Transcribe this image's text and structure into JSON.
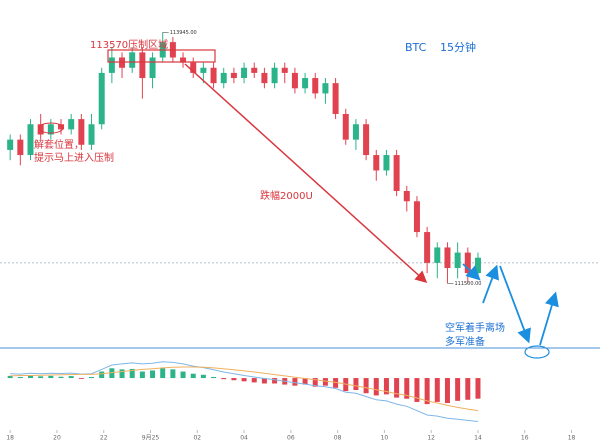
{
  "chart_data": {
    "type": "candlestick",
    "title": "BTC",
    "subtitle": "15分钟",
    "annotations": [
      "113570压制区域",
      "跌幅2000U",
      "解套位置，",
      "提示马上进入压制",
      "空军着手离场",
      "多军准备"
    ],
    "price_labels": [
      {
        "value": 113945,
        "label": "113945.00"
      },
      {
        "value": 111500,
        "label": "111500.00"
      }
    ],
    "reference_line": 111700,
    "up_color": "#2bb389",
    "down_color": "#e0434f",
    "xlim": [
      -1,
      58
    ],
    "ylim": [
      110900,
      114260
    ],
    "xticks": [
      {
        "value": 0,
        "label": "18"
      },
      {
        "value": 4.6,
        "label": "20"
      },
      {
        "value": 9.2,
        "label": "22"
      },
      {
        "value": 13.8,
        "label": "9月25"
      },
      {
        "value": 18.4,
        "label": "02"
      },
      {
        "value": 23,
        "label": "04"
      },
      {
        "value": 27.6,
        "label": "06"
      },
      {
        "value": 32.2,
        "label": "08"
      },
      {
        "value": 36.8,
        "label": "10"
      },
      {
        "value": 41.4,
        "label": "12"
      },
      {
        "value": 46,
        "label": "14"
      },
      {
        "value": 50.6,
        "label": "16"
      },
      {
        "value": 55.2,
        "label": "18"
      }
    ],
    "open": [
      112800,
      112900,
      112750,
      113050,
      112950,
      113050,
      113000,
      113100,
      112850,
      113050,
      113550,
      113700,
      113600,
      113750,
      113500,
      113700,
      113850,
      113700,
      113650,
      113550,
      113600,
      113450,
      113550,
      113500,
      113600,
      113550,
      113450,
      113600,
      113550,
      113400,
      113500,
      113350,
      113450,
      113150,
      112900,
      113050,
      112750,
      112600,
      112750,
      112400,
      112300,
      112000,
      111700,
      111850,
      111650,
      111800,
      111600
    ],
    "close": [
      112900,
      112750,
      113050,
      112950,
      113050,
      113000,
      113100,
      112850,
      113050,
      113550,
      113700,
      113600,
      113750,
      113500,
      113700,
      113850,
      113700,
      113650,
      113550,
      113600,
      113450,
      113550,
      113500,
      113600,
      113550,
      113450,
      113600,
      113550,
      113400,
      113500,
      113350,
      113450,
      113150,
      112900,
      113050,
      112750,
      112600,
      112750,
      112400,
      112300,
      112000,
      111700,
      111850,
      111650,
      111800,
      111600,
      111750
    ],
    "high": [
      112950,
      112950,
      113100,
      113150,
      113100,
      113100,
      113150,
      113150,
      113150,
      113600,
      113800,
      113750,
      113800,
      113800,
      113750,
      113945,
      113900,
      113750,
      113700,
      113650,
      113650,
      113600,
      113600,
      113650,
      113650,
      113600,
      113650,
      113650,
      113600,
      113550,
      113550,
      113500,
      113500,
      113200,
      113100,
      113100,
      112800,
      112800,
      112800,
      112450,
      112350,
      112050,
      111900,
      111900,
      111900,
      111850,
      111800
    ],
    "low": [
      112700,
      112650,
      112700,
      112900,
      112900,
      112950,
      112950,
      112800,
      112800,
      113000,
      113450,
      113500,
      113550,
      113300,
      113400,
      113650,
      113650,
      113600,
      113500,
      113450,
      113400,
      113400,
      113450,
      113450,
      113500,
      113400,
      113400,
      113450,
      113350,
      113350,
      113300,
      113250,
      113100,
      112850,
      112800,
      112700,
      112500,
      112550,
      112350,
      112200,
      111950,
      111600,
      111550,
      111500,
      111550,
      111500,
      111580
    ],
    "macd": {
      "ylim": [
        -230,
        120
      ],
      "hist": [
        10,
        5,
        12,
        8,
        10,
        6,
        9,
        -4,
        5,
        30,
        45,
        40,
        42,
        30,
        35,
        45,
        40,
        30,
        20,
        15,
        5,
        -5,
        -10,
        -15,
        -20,
        -25,
        -25,
        -30,
        -35,
        -30,
        -40,
        -35,
        -45,
        -60,
        -55,
        -70,
        -80,
        -75,
        -90,
        -95,
        -110,
        -120,
        -110,
        -115,
        -105,
        -100,
        -95
      ],
      "dif": [
        20,
        18,
        22,
        20,
        22,
        21,
        23,
        18,
        20,
        40,
        60,
        65,
        70,
        65,
        68,
        75,
        72,
        65,
        55,
        48,
        38,
        28,
        20,
        12,
        5,
        -2,
        -8,
        -15,
        -22,
        -28,
        -35,
        -40,
        -48,
        -65,
        -70,
        -85,
        -100,
        -105,
        -120,
        -130,
        -150,
        -170,
        -175,
        -185,
        -190,
        -195,
        -200
      ],
      "dea": [
        10,
        12,
        12,
        13,
        14,
        15,
        16,
        17,
        17,
        20,
        25,
        30,
        35,
        40,
        43,
        47,
        50,
        51,
        51,
        50,
        47,
        43,
        38,
        33,
        28,
        22,
        16,
        10,
        4,
        -2,
        -8,
        -14,
        -20,
        -28,
        -36,
        -45,
        -54,
        -62,
        -72,
        -80,
        -92,
        -105,
        -115,
        -126,
        -135,
        -143,
        -150
      ],
      "dif_color": "#7fb7e8",
      "dea_color": "#f0b060"
    }
  }
}
